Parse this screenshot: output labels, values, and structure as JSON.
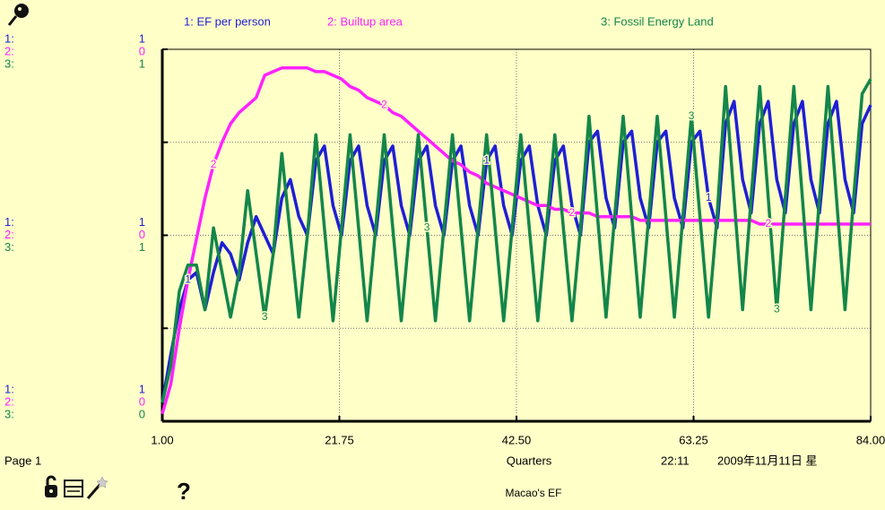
{
  "chart_data": {
    "type": "line",
    "title": "Macao's EF",
    "xlabel": "Quarters",
    "page": "Page 1",
    "time": "22:11",
    "date": "2009年11月11日 星",
    "x": [
      1,
      2,
      3,
      4,
      5,
      6,
      7,
      8,
      9,
      10,
      11,
      12,
      13,
      14,
      15,
      16,
      17,
      18,
      19,
      20,
      21,
      22,
      23,
      24,
      25,
      26,
      27,
      28,
      29,
      30,
      31,
      32,
      33,
      34,
      35,
      36,
      37,
      38,
      39,
      40,
      41,
      42,
      43,
      44,
      45,
      46,
      47,
      48,
      49,
      50,
      51,
      52,
      53,
      54,
      55,
      56,
      57,
      58,
      59,
      60,
      61,
      62,
      63,
      64,
      65,
      66,
      67,
      68,
      69,
      70,
      71,
      72,
      73,
      74,
      75,
      76,
      77,
      78,
      79,
      80,
      81,
      82,
      83,
      84
    ],
    "xlim": [
      1,
      84
    ],
    "xticks": [
      {
        "value": 1,
        "label": "1.00"
      },
      21.75,
      {
        "value": 42.5,
        "label": "42.50"
      },
      63.25,
      {
        "value": 84,
        "label": "84.00"
      }
    ],
    "ylim": [
      0,
      1
    ],
    "yticks": [
      0,
      0.25,
      0.5,
      0.75,
      1
    ],
    "grid": true,
    "background": "#ffffc8",
    "series": [
      {
        "name": "1: EF per person",
        "marker": "1",
        "axis_key": "1:",
        "axis_labels": [
          1,
          1,
          1
        ],
        "color": "#1f1fd6",
        "values": [
          0.05,
          0.18,
          0.3,
          0.38,
          0.4,
          0.3,
          0.4,
          0.48,
          0.45,
          0.38,
          0.48,
          0.55,
          0.5,
          0.45,
          0.6,
          0.65,
          0.55,
          0.5,
          0.7,
          0.74,
          0.58,
          0.5,
          0.7,
          0.74,
          0.58,
          0.5,
          0.7,
          0.74,
          0.58,
          0.5,
          0.7,
          0.74,
          0.58,
          0.5,
          0.7,
          0.74,
          0.58,
          0.5,
          0.7,
          0.74,
          0.58,
          0.5,
          0.7,
          0.74,
          0.58,
          0.5,
          0.7,
          0.74,
          0.58,
          0.5,
          0.75,
          0.78,
          0.6,
          0.52,
          0.75,
          0.78,
          0.6,
          0.52,
          0.75,
          0.78,
          0.6,
          0.52,
          0.75,
          0.78,
          0.6,
          0.52,
          0.8,
          0.86,
          0.65,
          0.56,
          0.8,
          0.86,
          0.65,
          0.56,
          0.8,
          0.86,
          0.65,
          0.56,
          0.8,
          0.86,
          0.65,
          0.56,
          0.8,
          0.85
        ]
      },
      {
        "name": "2: Builtup area",
        "marker": "2",
        "axis_key": "2:",
        "axis_labels": [
          0,
          0,
          0
        ],
        "color": "#ff22ff",
        "values": [
          0.02,
          0.1,
          0.25,
          0.38,
          0.49,
          0.6,
          0.69,
          0.75,
          0.8,
          0.83,
          0.85,
          0.87,
          0.93,
          0.94,
          0.95,
          0.95,
          0.95,
          0.95,
          0.94,
          0.94,
          0.93,
          0.92,
          0.9,
          0.89,
          0.87,
          0.86,
          0.85,
          0.83,
          0.82,
          0.8,
          0.78,
          0.76,
          0.74,
          0.72,
          0.7,
          0.69,
          0.67,
          0.66,
          0.64,
          0.63,
          0.62,
          0.61,
          0.6,
          0.59,
          0.58,
          0.58,
          0.57,
          0.57,
          0.56,
          0.56,
          0.56,
          0.55,
          0.55,
          0.55,
          0.55,
          0.55,
          0.54,
          0.54,
          0.54,
          0.54,
          0.54,
          0.54,
          0.54,
          0.54,
          0.54,
          0.54,
          0.54,
          0.54,
          0.54,
          0.54,
          0.53,
          0.53,
          0.53,
          0.53,
          0.53,
          0.53,
          0.53,
          0.53,
          0.53,
          0.53,
          0.53,
          0.53,
          0.53,
          0.53
        ]
      },
      {
        "name": "3: Fossil Energy Land",
        "marker": "3",
        "axis_key": "3:",
        "axis_labels": [
          1,
          1,
          0
        ],
        "color": "#14864a",
        "values": [
          0.05,
          0.15,
          0.35,
          0.42,
          0.42,
          0.3,
          0.52,
          0.4,
          0.28,
          0.4,
          0.62,
          0.45,
          0.28,
          0.45,
          0.72,
          0.5,
          0.28,
          0.5,
          0.77,
          0.52,
          0.27,
          0.52,
          0.77,
          0.52,
          0.27,
          0.52,
          0.77,
          0.52,
          0.27,
          0.52,
          0.77,
          0.52,
          0.27,
          0.52,
          0.77,
          0.52,
          0.27,
          0.52,
          0.77,
          0.52,
          0.27,
          0.52,
          0.77,
          0.52,
          0.27,
          0.52,
          0.77,
          0.52,
          0.27,
          0.52,
          0.82,
          0.55,
          0.28,
          0.55,
          0.82,
          0.55,
          0.28,
          0.55,
          0.82,
          0.55,
          0.28,
          0.55,
          0.82,
          0.55,
          0.28,
          0.55,
          0.9,
          0.6,
          0.3,
          0.6,
          0.9,
          0.6,
          0.3,
          0.6,
          0.9,
          0.6,
          0.3,
          0.6,
          0.9,
          0.6,
          0.3,
          0.6,
          0.88,
          0.92
        ]
      }
    ]
  }
}
